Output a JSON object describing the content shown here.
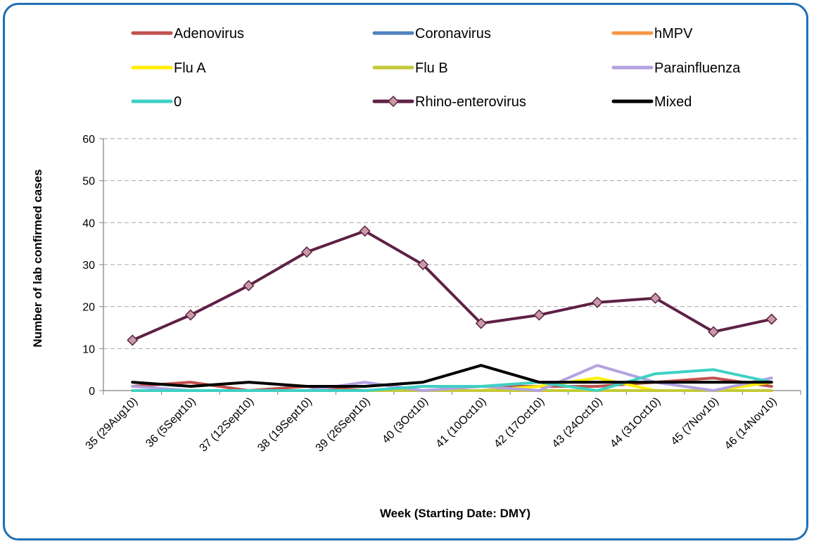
{
  "chart_data": {
    "type": "line",
    "title": "",
    "xlabel": "Week (Starting Date: DMY)",
    "ylabel": "Number of lab confirmed cases",
    "ylim": [
      0,
      60
    ],
    "yticks": [
      0,
      10,
      20,
      30,
      40,
      50,
      60
    ],
    "grid": "horizontal dashed",
    "legend_position": "top",
    "categories": [
      "35 (29Aug10)",
      "36 (5Sept10)",
      "37 (12Sept10)",
      "38 (19Sept10)",
      "39 (26Sept10)",
      "40 (3Oct10)",
      "41 (10Oct10)",
      "42 (17Oct10)",
      "43 (24Oct10)",
      "44 (31Oct10)",
      "45 (7Nov10)",
      "46 (14Nov10)"
    ],
    "series": [
      {
        "name": "Adenovirus",
        "color": "#c0504d",
        "values": [
          1,
          2,
          0,
          1,
          0,
          0,
          1,
          1,
          1,
          2,
          3,
          1
        ]
      },
      {
        "name": "Coronavirus",
        "color": "#4f81bd",
        "values": [
          0,
          0,
          0,
          0,
          0,
          0,
          0,
          0,
          0,
          0,
          0,
          0
        ]
      },
      {
        "name": "hMPV",
        "color": "#f79646",
        "values": [
          0,
          0,
          0,
          0,
          0,
          0,
          0,
          0,
          0,
          0,
          0,
          0
        ]
      },
      {
        "name": "Flu A",
        "color": "#ffee00",
        "values": [
          0,
          0,
          0,
          0,
          0,
          0,
          0,
          1,
          3,
          0,
          0,
          2
        ]
      },
      {
        "name": "Flu B",
        "color": "#c4c93a",
        "values": [
          0,
          0,
          0,
          0,
          0,
          0,
          0,
          0,
          0,
          0,
          0,
          0
        ]
      },
      {
        "name": "Parainfluenza",
        "color": "#b3a2e0",
        "values": [
          1,
          0,
          0,
          0,
          2,
          0,
          1,
          0,
          6,
          2,
          0,
          3
        ]
      },
      {
        "name": "0",
        "color": "#3fd0c4",
        "values": [
          0,
          0,
          0,
          0,
          0,
          1,
          1,
          2,
          0,
          4,
          5,
          2
        ]
      },
      {
        "name": "Rhino-enterovirus",
        "color": "#5e2145",
        "marker": "diamond",
        "marker_fill": "#c79aa5",
        "values": [
          12,
          18,
          25,
          33,
          38,
          30,
          16,
          18,
          21,
          22,
          14,
          17
        ]
      },
      {
        "name": "Mixed",
        "color": "#000000",
        "values": [
          2,
          1,
          2,
          1,
          1,
          2,
          6,
          2,
          2,
          2,
          2,
          2
        ]
      }
    ]
  }
}
